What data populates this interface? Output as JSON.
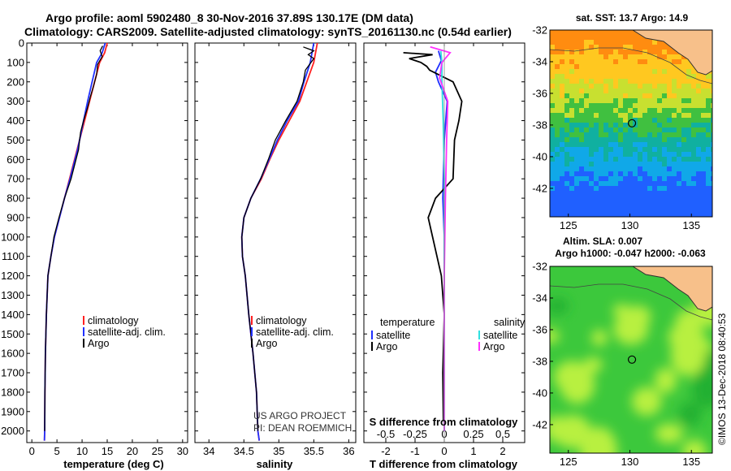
{
  "header": {
    "line1": "Argo profile: aoml 5902480_8 30-Nov-2016 37.89S 130.17E (DM data)",
    "line2": "Climatology: CARS2009. Satellite-adjusted climatology: synTS_20161130.nc (0.54d earlier)"
  },
  "credit": {
    "line1": "US ARGO PROJECT",
    "line2": "PI: DEAN ROEMMICH"
  },
  "watermark": "©IMOS 13-Dec-2018 08:40:53",
  "colors": {
    "climatology": "#ff2020",
    "satellite": "#2030ff",
    "argo": "#000000",
    "sal_satellite": "#30e0e0",
    "sal_climatology": "#ff30ff",
    "land": "#f7c08a",
    "coast": "#303030"
  },
  "chart_data": [
    {
      "type": "line",
      "name": "temperature",
      "xlabel": "temperature (deg C)",
      "ylabel": "",
      "xlim": [
        -1,
        31
      ],
      "ylim": [
        2060,
        0
      ],
      "xticks": [
        0,
        5,
        10,
        15,
        20,
        25,
        30
      ],
      "yticks": [
        0,
        100,
        200,
        300,
        400,
        500,
        600,
        700,
        800,
        900,
        1000,
        1100,
        1200,
        1300,
        1400,
        1500,
        1600,
        1700,
        1800,
        1900,
        2000
      ],
      "legend": {
        "position": "lower-right",
        "entries": [
          "climatology",
          "satellite-adj. clim.",
          "Argo"
        ]
      },
      "series": [
        {
          "name": "climatology",
          "x": [
            15.0,
            14.5,
            13.5,
            12.5,
            11.5,
            10.5,
            9.5,
            9.0,
            8.5,
            7.5,
            6.5,
            5.5,
            4.5,
            3.8,
            3.2,
            2.9,
            2.7,
            2.6,
            2.55,
            2.5
          ],
          "y": [
            0,
            50,
            100,
            200,
            300,
            400,
            500,
            550,
            600,
            700,
            800,
            900,
            1000,
            1100,
            1200,
            1400,
            1600,
            1800,
            2000,
            2050
          ]
        },
        {
          "name": "satellite-adj. clim.",
          "x": [
            14.6,
            14.0,
            12.9,
            12.0,
            11.1,
            10.3,
            9.5,
            9.1,
            8.6,
            7.6,
            6.5,
            5.5,
            4.5,
            3.8,
            3.2,
            2.9,
            2.7,
            2.6,
            2.55,
            2.5
          ],
          "y": [
            0,
            50,
            100,
            200,
            300,
            400,
            500,
            550,
            600,
            700,
            800,
            900,
            1000,
            1100,
            1200,
            1400,
            1600,
            1800,
            2000,
            2050
          ]
        },
        {
          "name": "Argo",
          "x": [
            14.1,
            13.6,
            14.0,
            13.1,
            12.9,
            12.3,
            11.6,
            11.0,
            10.3,
            9.7,
            9.5,
            9.3,
            8.8,
            7.8,
            6.5,
            5.4,
            4.4,
            3.8,
            3.2,
            2.9,
            2.7,
            2.6,
            2.55
          ],
          "y": [
            15,
            40,
            70,
            110,
            160,
            220,
            280,
            340,
            400,
            460,
            500,
            550,
            600,
            700,
            800,
            900,
            1000,
            1100,
            1200,
            1400,
            1600,
            1800,
            2000
          ]
        }
      ]
    },
    {
      "type": "line",
      "name": "salinity",
      "xlabel": "salinity",
      "ylabel": "",
      "xlim": [
        33.8,
        36.1
      ],
      "ylim": [
        2060,
        0
      ],
      "xticks": [
        34,
        34.5,
        35,
        35.5,
        36
      ],
      "legend": {
        "position": "lower-right",
        "entries": [
          "climatology",
          "satellite-adj. clim.",
          "Argo"
        ]
      },
      "series": [
        {
          "name": "climatology",
          "x": [
            35.55,
            35.5,
            35.4,
            35.3,
            35.15,
            35.0,
            34.87,
            34.75,
            34.6,
            34.5,
            34.47,
            34.48,
            34.52,
            34.57,
            34.63,
            34.68,
            34.7,
            34.72
          ],
          "y": [
            0,
            100,
            200,
            300,
            400,
            500,
            600,
            700,
            800,
            900,
            1000,
            1100,
            1200,
            1400,
            1600,
            1800,
            2000,
            2050
          ]
        },
        {
          "name": "satellite-adj. clim.",
          "x": [
            35.5,
            35.45,
            35.36,
            35.28,
            35.12,
            34.98,
            34.86,
            34.74,
            34.6,
            34.5,
            34.47,
            34.48,
            34.52,
            34.57,
            34.63,
            34.68,
            34.7,
            34.72
          ],
          "y": [
            0,
            100,
            200,
            300,
            400,
            500,
            600,
            700,
            800,
            900,
            1000,
            1100,
            1200,
            1400,
            1600,
            1800,
            2000,
            2050
          ]
        },
        {
          "name": "Argo",
          "x": [
            35.35,
            35.5,
            35.42,
            35.5,
            35.44,
            35.38,
            35.35,
            35.26,
            35.1,
            34.95,
            34.85,
            34.74,
            34.6,
            34.5,
            34.47,
            34.48,
            34.52,
            34.57,
            34.63,
            34.68,
            34.7
          ],
          "y": [
            20,
            40,
            60,
            80,
            110,
            140,
            200,
            300,
            400,
            500,
            600,
            700,
            800,
            900,
            1000,
            1100,
            1200,
            1400,
            1600,
            1800,
            2000
          ]
        }
      ]
    },
    {
      "type": "line",
      "name": "difference",
      "xlabel": "T difference from climatology",
      "x2label": "S difference from climatology",
      "xlim": [
        -2.75,
        2.75
      ],
      "ylim": [
        2060,
        0
      ],
      "xticks": [
        -2,
        -1,
        0,
        1,
        2
      ],
      "x2ticks": [
        "-0.5",
        "-0.25",
        "0",
        "0.25",
        "0.5"
      ],
      "x2values": [
        -0.5,
        -0.25,
        0,
        0.25,
        0.5
      ],
      "legend": {
        "position": "lower",
        "groups": [
          "temperature",
          "salinity"
        ],
        "entries": [
          "satellite",
          "Argo"
        ]
      },
      "series": [
        {
          "name": "temperature satellite",
          "x": [
            -0.2,
            -0.1,
            -0.3,
            -0.2,
            0.1,
            0.0,
            -0.05,
            0.0,
            0.0,
            0.0,
            0.0
          ],
          "y": [
            40,
            90,
            150,
            200,
            300,
            500,
            800,
            1000,
            1400,
            1800,
            2000
          ]
        },
        {
          "name": "temperature Argo",
          "x": [
            -1.4,
            -0.4,
            -1.2,
            -0.8,
            -0.6,
            -0.5,
            0.3,
            0.6,
            0.5,
            0.35,
            0.3,
            -0.3,
            -0.55,
            -0.4,
            -0.1,
            0.0,
            -0.05,
            -0.03
          ],
          "y": [
            50,
            60,
            80,
            100,
            120,
            140,
            200,
            300,
            400,
            500,
            700,
            800,
            900,
            1000,
            1200,
            1400,
            1700,
            1950
          ]
        },
        {
          "name": "salinity satellite",
          "x": [
            -0.03,
            -0.02,
            -0.02,
            -0.01,
            0.0,
            0.0,
            0.0,
            0.0,
            0.0
          ],
          "y": [
            40,
            100,
            200,
            400,
            700,
            1000,
            1400,
            1800,
            2000
          ]
        },
        {
          "name": "salinity Argo",
          "x": [
            -0.12,
            0.05,
            -0.02,
            -0.04,
            0.03,
            0.02,
            0.01,
            0.0,
            0.0,
            0.0
          ],
          "y": [
            20,
            50,
            100,
            180,
            300,
            500,
            800,
            1200,
            1600,
            2000
          ]
        }
      ]
    },
    {
      "type": "heatmap",
      "name": "sst-map",
      "title": "sat. SST: 13.7 Argo: 14.9",
      "xlim": [
        123.5,
        136.7
      ],
      "ylim": [
        -43.8,
        -32
      ],
      "xticks": [
        125,
        130,
        135
      ],
      "yticks": [
        -32,
        -34,
        -36,
        -38,
        -40,
        -42
      ],
      "profile_location": {
        "lon": 130.17,
        "lat": -37.89
      }
    },
    {
      "type": "heatmap",
      "name": "sla-map",
      "title": "Altim. SLA: 0.007",
      "subtitle": "Argo h1000: -0.047 h2000: -0.063",
      "xlim": [
        123.5,
        136.7
      ],
      "ylim": [
        -43.8,
        -32
      ],
      "xticks": [
        125,
        130,
        135
      ],
      "yticks": [
        -32,
        -34,
        -36,
        -38,
        -40,
        -42
      ],
      "profile_location": {
        "lon": 130.17,
        "lat": -37.89
      }
    }
  ]
}
